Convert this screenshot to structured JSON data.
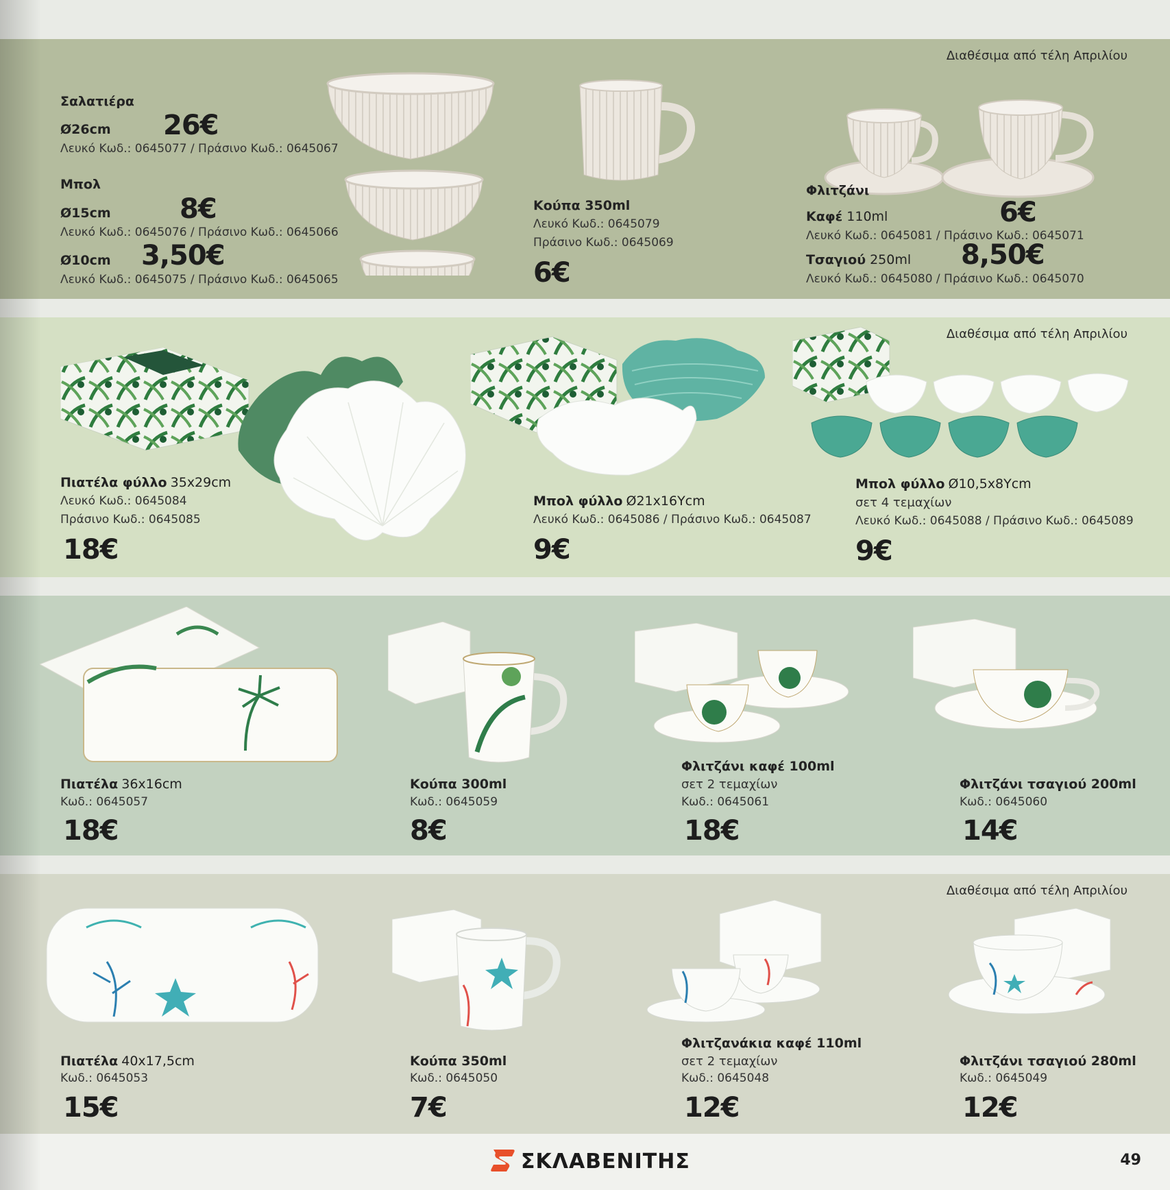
{
  "availability_note": "Διαθέσιμα από τέλη Απριλίου",
  "band1": {
    "saladbowl": {
      "name": "Σαλατιέρα",
      "size": "Ø26cm",
      "price": "26€",
      "codes": "Λευκό Κωδ.: 0645077 / Πράσινο Κωδ.: 0645067"
    },
    "bowl": {
      "name": "Μπολ",
      "size1": "Ø15cm",
      "price1": "8€",
      "codes1": "Λευκό Κωδ.: 0645076 / Πράσινο Κωδ.: 0645066",
      "size2": "Ø10cm",
      "price2": "3,50€",
      "codes2": "Λευκό Κωδ.: 0645075 / Πράσινο Κωδ.: 0645065"
    },
    "mug": {
      "name": "Κούπα 350ml",
      "code_white": "Λευκό Κωδ.: 0645079",
      "code_green": "Πράσινο Κωδ.: 0645069",
      "price": "6€"
    },
    "cup": {
      "name": "Φλιτζάνι",
      "coffee_label": "Καφέ",
      "coffee_size": "110ml",
      "coffee_price": "6€",
      "coffee_codes": "Λευκό Κωδ.: 0645081 / Πράσινο Κωδ.: 0645071",
      "tea_label": "Τσαγιού",
      "tea_size": "250ml",
      "tea_price": "8,50€",
      "tea_codes": "Λευκό Κωδ.: 0645080 / Πράσινο Κωδ.: 0645070"
    }
  },
  "band2": {
    "platter": {
      "name": "Πιατέλα φύλλο",
      "size": "35x29cm",
      "code_white": "Λευκό Κωδ.: 0645084",
      "code_green": "Πράσινο Κωδ.: 0645085",
      "price": "18€"
    },
    "leafbowl": {
      "name": "Μπολ φύλλο",
      "size": "Ø21x16Ycm",
      "codes": "Λευκό Κωδ.: 0645086 / Πράσινο Κωδ.: 0645087",
      "price": "9€"
    },
    "leafbowlset": {
      "name": "Μπολ φύλλο",
      "size": "Ø10,5x8Ycm",
      "set": "σετ 4 τεμαχίων",
      "codes": "Λευκό Κωδ.: 0645088 / Πράσινο Κωδ.: 0645089",
      "price": "9€"
    }
  },
  "band3": {
    "platter": {
      "name": "Πιατέλα",
      "size": "36x16cm",
      "code": "Κωδ.: 0645057",
      "price": "18€"
    },
    "mug": {
      "name": "Κούπα 300ml",
      "code": "Κωδ.: 0645059",
      "price": "8€"
    },
    "coffee": {
      "name": "Φλιτζάνι καφέ 100ml",
      "set": "σετ 2 τεμαχίων",
      "code": "Κωδ.: 0645061",
      "price": "18€"
    },
    "tea": {
      "name": "Φλιτζάνι τσαγιού 200ml",
      "code": "Κωδ.: 0645060",
      "price": "14€"
    }
  },
  "band4": {
    "platter": {
      "name": "Πιατέλα",
      "size": "40x17,5cm",
      "code": "Κωδ.: 0645053",
      "price": "15€"
    },
    "mug": {
      "name": "Κούπα 350ml",
      "code": "Κωδ.: 0645050",
      "price": "7€"
    },
    "coffee": {
      "name": "Φλιτζανάκια καφέ 110ml",
      "set": "σετ 2 τεμαχίων",
      "code": "Κωδ.: 0645048",
      "price": "12€"
    },
    "tea": {
      "name": "Φλιτζάνι τσαγιού 280ml",
      "code": "Κωδ.: 0645049",
      "price": "12€"
    }
  },
  "footer": {
    "brand": "ΣΚΛΑΒΕΝΙΤΗΣ",
    "page_number": "49",
    "logo_color": "#e8502a"
  }
}
